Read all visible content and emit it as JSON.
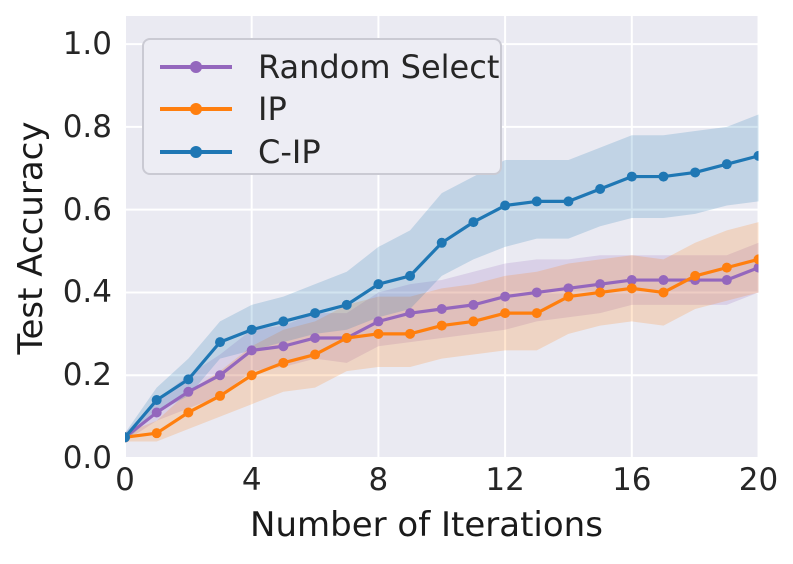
{
  "chart_data": {
    "type": "line",
    "title": "",
    "xlabel": "Number of Iterations",
    "ylabel": "Test Accuracy",
    "x": [
      0,
      1,
      2,
      3,
      4,
      5,
      6,
      7,
      8,
      9,
      10,
      11,
      12,
      13,
      14,
      15,
      16,
      17,
      18,
      19,
      20
    ],
    "series": [
      {
        "name": "Random Select",
        "color": "#9467bd",
        "values": [
          0.05,
          0.11,
          0.16,
          0.2,
          0.26,
          0.27,
          0.29,
          0.29,
          0.33,
          0.35,
          0.36,
          0.37,
          0.39,
          0.4,
          0.41,
          0.42,
          0.43,
          0.43,
          0.43,
          0.43,
          0.46
        ],
        "band_upper": [
          0.06,
          0.14,
          0.2,
          0.25,
          0.31,
          0.32,
          0.35,
          0.35,
          0.4,
          0.42,
          0.43,
          0.45,
          0.47,
          0.48,
          0.48,
          0.49,
          0.49,
          0.49,
          0.49,
          0.49,
          0.52
        ],
        "band_lower": [
          0.04,
          0.09,
          0.12,
          0.15,
          0.21,
          0.22,
          0.24,
          0.23,
          0.27,
          0.28,
          0.29,
          0.3,
          0.31,
          0.33,
          0.34,
          0.35,
          0.37,
          0.37,
          0.37,
          0.37,
          0.4
        ]
      },
      {
        "name": "IP",
        "color": "#ff7f0e",
        "values": [
          0.05,
          0.06,
          0.11,
          0.15,
          0.2,
          0.23,
          0.25,
          0.29,
          0.3,
          0.3,
          0.32,
          0.33,
          0.35,
          0.35,
          0.39,
          0.4,
          0.41,
          0.4,
          0.44,
          0.46,
          0.48
        ],
        "band_upper": [
          0.06,
          0.09,
          0.16,
          0.21,
          0.27,
          0.31,
          0.33,
          0.37,
          0.39,
          0.39,
          0.41,
          0.42,
          0.44,
          0.45,
          0.47,
          0.48,
          0.49,
          0.48,
          0.52,
          0.55,
          0.57
        ],
        "band_lower": [
          0.04,
          0.04,
          0.07,
          0.1,
          0.13,
          0.16,
          0.17,
          0.21,
          0.22,
          0.22,
          0.24,
          0.25,
          0.26,
          0.26,
          0.3,
          0.32,
          0.33,
          0.32,
          0.36,
          0.38,
          0.4
        ]
      },
      {
        "name": "C-IP",
        "color": "#1f77b4",
        "values": [
          0.05,
          0.14,
          0.19,
          0.28,
          0.31,
          0.33,
          0.35,
          0.37,
          0.42,
          0.44,
          0.52,
          0.57,
          0.61,
          0.62,
          0.62,
          0.65,
          0.68,
          0.68,
          0.69,
          0.71,
          0.73
        ],
        "band_upper": [
          0.06,
          0.17,
          0.24,
          0.33,
          0.37,
          0.39,
          0.42,
          0.45,
          0.51,
          0.55,
          0.64,
          0.68,
          0.72,
          0.72,
          0.72,
          0.75,
          0.78,
          0.78,
          0.79,
          0.8,
          0.83
        ],
        "band_lower": [
          0.04,
          0.11,
          0.15,
          0.24,
          0.26,
          0.28,
          0.3,
          0.31,
          0.34,
          0.36,
          0.44,
          0.48,
          0.51,
          0.53,
          0.53,
          0.56,
          0.58,
          0.58,
          0.59,
          0.61,
          0.62
        ]
      }
    ],
    "xticks": [
      0,
      4,
      8,
      12,
      16,
      20
    ],
    "yticks": [
      0.0,
      0.2,
      0.4,
      0.6,
      0.8,
      1.0
    ],
    "ytick_labels": [
      "0.0",
      "0.2",
      "0.4",
      "0.6",
      "0.8",
      "1.0"
    ],
    "xlim": [
      0,
      20
    ],
    "ylim": [
      0,
      1.068
    ],
    "grid": true,
    "legend_position": "upper left",
    "legend_entries": [
      "Random Select",
      "IP",
      "C-IP"
    ],
    "band_alpha": 0.2,
    "plot_background": "#eaeaf2",
    "grid_color": "#ffffff"
  }
}
